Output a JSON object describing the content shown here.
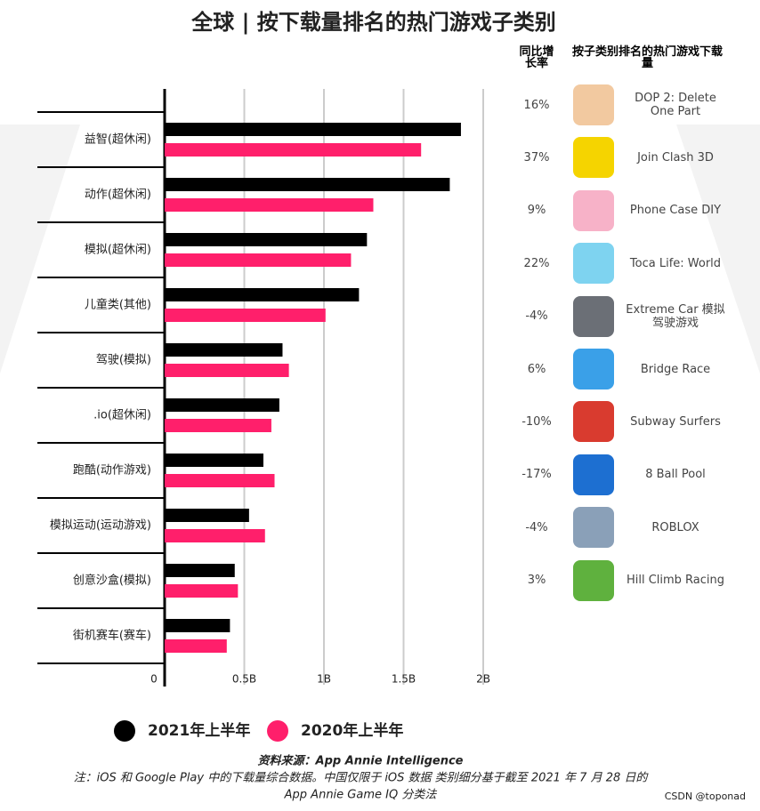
{
  "chart_data": {
    "type": "bar",
    "orientation": "horizontal",
    "title": "全球 | 按下载量排名的热门游戏子类别",
    "categories": [
      "益智(超休闲)",
      "动作(超休闲)",
      "模拟(超休闲)",
      "儿童类(其他)",
      "驾驶(模拟)",
      ".io(超休闲)",
      "跑酷(动作游戏)",
      "模拟运动(运动游戏)",
      "创意沙盒(模拟)",
      "街机赛车(赛车)"
    ],
    "series": [
      {
        "name": "2021年上半年",
        "color": "#000000",
        "values": [
          1.86,
          1.79,
          1.27,
          1.22,
          0.74,
          0.72,
          0.62,
          0.53,
          0.44,
          0.41
        ]
      },
      {
        "name": "2020年上半年",
        "color": "#ff1f6b",
        "values": [
          1.61,
          1.31,
          1.17,
          1.01,
          0.78,
          0.67,
          0.69,
          0.63,
          0.46,
          0.39
        ]
      }
    ],
    "xlim": [
      0,
      2
    ],
    "xticks": [
      0,
      {
        "value": 0.5,
        "label": "0.5B"
      },
      {
        "value": 1,
        "label": "1B"
      },
      {
        "value": 1.5,
        "label": "1.5B"
      },
      {
        "value": 2,
        "label": "2B"
      }
    ],
    "grid": true,
    "legend": "bottom"
  },
  "table": {
    "header": [
      "同比增长率",
      "按子类别排名的热门游戏下载量"
    ],
    "rows": [
      [
        "16%",
        "DOP 2: Delete One Part"
      ],
      [
        "37%",
        "Join Clash 3D"
      ],
      [
        "9%",
        "Phone Case DIY"
      ],
      [
        "22%",
        "Toca Life: World"
      ],
      [
        "-4%",
        "Extreme Car 模拟驾驶游戏"
      ],
      [
        "6%",
        "Bridge Race"
      ],
      [
        "-10%",
        "Subway Surfers"
      ],
      [
        "-17%",
        "8 Ball Pool"
      ],
      [
        "-4%",
        "ROBLOX"
      ],
      [
        "3%",
        "Hill Climb Racing"
      ]
    ]
  },
  "footer": {
    "source": "资料来源：App Annie Intelligence",
    "note": [
      "注：iOS 和 Google Play 中的下载量综合数据。中国仅限于 iOS 数据 类别细分基于截至 2021 年 7 月 28 日的",
      "App Annie Game IQ 分类法"
    ],
    "watermark": "CSDN @toponad"
  }
}
